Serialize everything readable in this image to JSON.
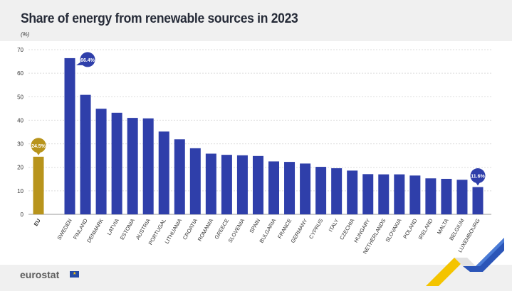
{
  "colors": {
    "eu_bar": "#b8941c",
    "country_bar": "#2f3faa",
    "background": "#f0f0f0",
    "plot_bg": "#ffffff",
    "grid": "#dcdcdc"
  },
  "footer": {
    "logo_text": "eurostat"
  },
  "chart_data": {
    "type": "bar",
    "title": "Share of energy from renewable sources in 2023",
    "unit": "(%)",
    "xlabel": "",
    "ylabel": "",
    "ylim": [
      0,
      70
    ],
    "yticks": [
      0,
      10,
      20,
      30,
      40,
      50,
      60,
      70
    ],
    "grid": true,
    "categories": [
      "EU",
      "SWEDEN",
      "FINLAND",
      "DENMARK",
      "LATVIA",
      "ESTONIA",
      "AUSTRIA",
      "PORTUGAL",
      "LITHUANIA",
      "CROATIA",
      "ROMANIA",
      "GREECE",
      "SLOVENIA",
      "SPAIN",
      "BULGARIA",
      "FRANCE",
      "GERMANY",
      "CYPRUS",
      "ITALY",
      "CZECHIA",
      "HUNGARY",
      "NETHERLANDS",
      "SLOVAKIA",
      "POLAND",
      "IRELAND",
      "MALTA",
      "BELGIUM",
      "LUXEMBOURG"
    ],
    "values": [
      24.5,
      66.4,
      50.8,
      44.9,
      43.2,
      41.0,
      40.8,
      35.2,
      31.9,
      28.1,
      25.8,
      25.3,
      25.1,
      24.8,
      22.5,
      22.3,
      21.6,
      20.2,
      19.6,
      18.6,
      17.1,
      17.0,
      17.0,
      16.5,
      15.3,
      15.1,
      14.7,
      11.6
    ],
    "annotations": [
      {
        "category": "EU",
        "label": "24.5%"
      },
      {
        "category": "SWEDEN",
        "label": "66.4%"
      },
      {
        "category": "LUXEMBOURG",
        "label": "11.6%"
      }
    ]
  }
}
